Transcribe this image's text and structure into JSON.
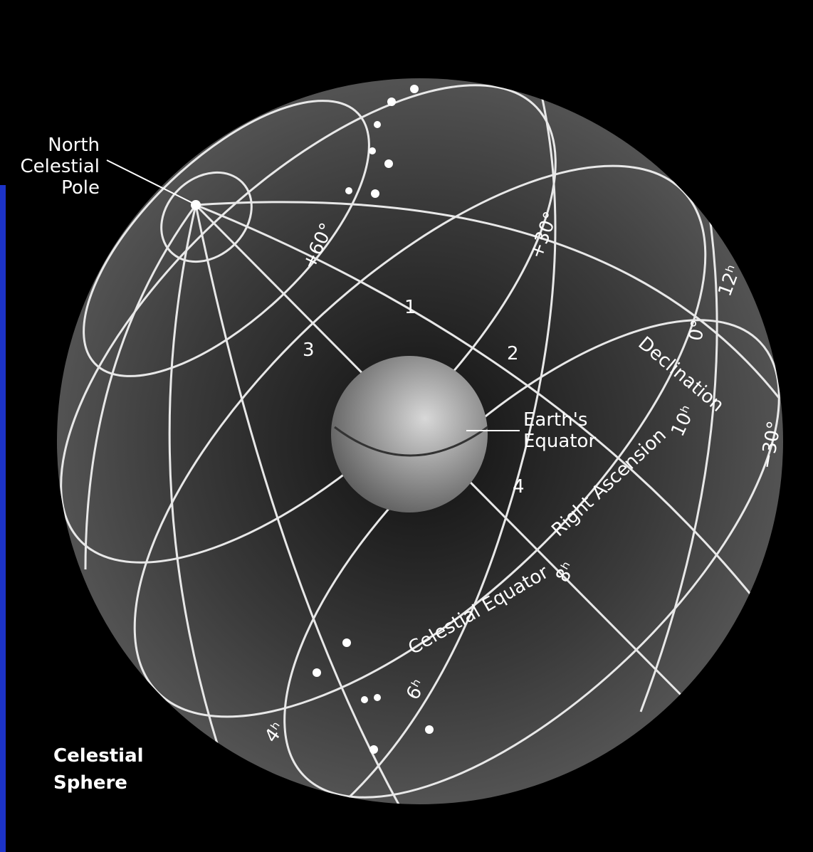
{
  "pole_label": [
    "North",
    "Celestial",
    "Pole"
  ],
  "declination_labels": [
    "+60°",
    "+30°",
    "0°",
    "−30°"
  ],
  "hour_labels": [
    "12ʰ",
    "10ʰ",
    "8ʰ",
    "6ʰ",
    "4ʰ"
  ],
  "declination": "Declination",
  "right_ascension": "Right Ascension",
  "celestial_equator": "Celestial Equator",
  "earth_equator": [
    "Earth's",
    "Equator"
  ],
  "observers": [
    "1",
    "2",
    "3",
    "4"
  ],
  "caption": [
    "Celestial",
    "Sphere"
  ]
}
